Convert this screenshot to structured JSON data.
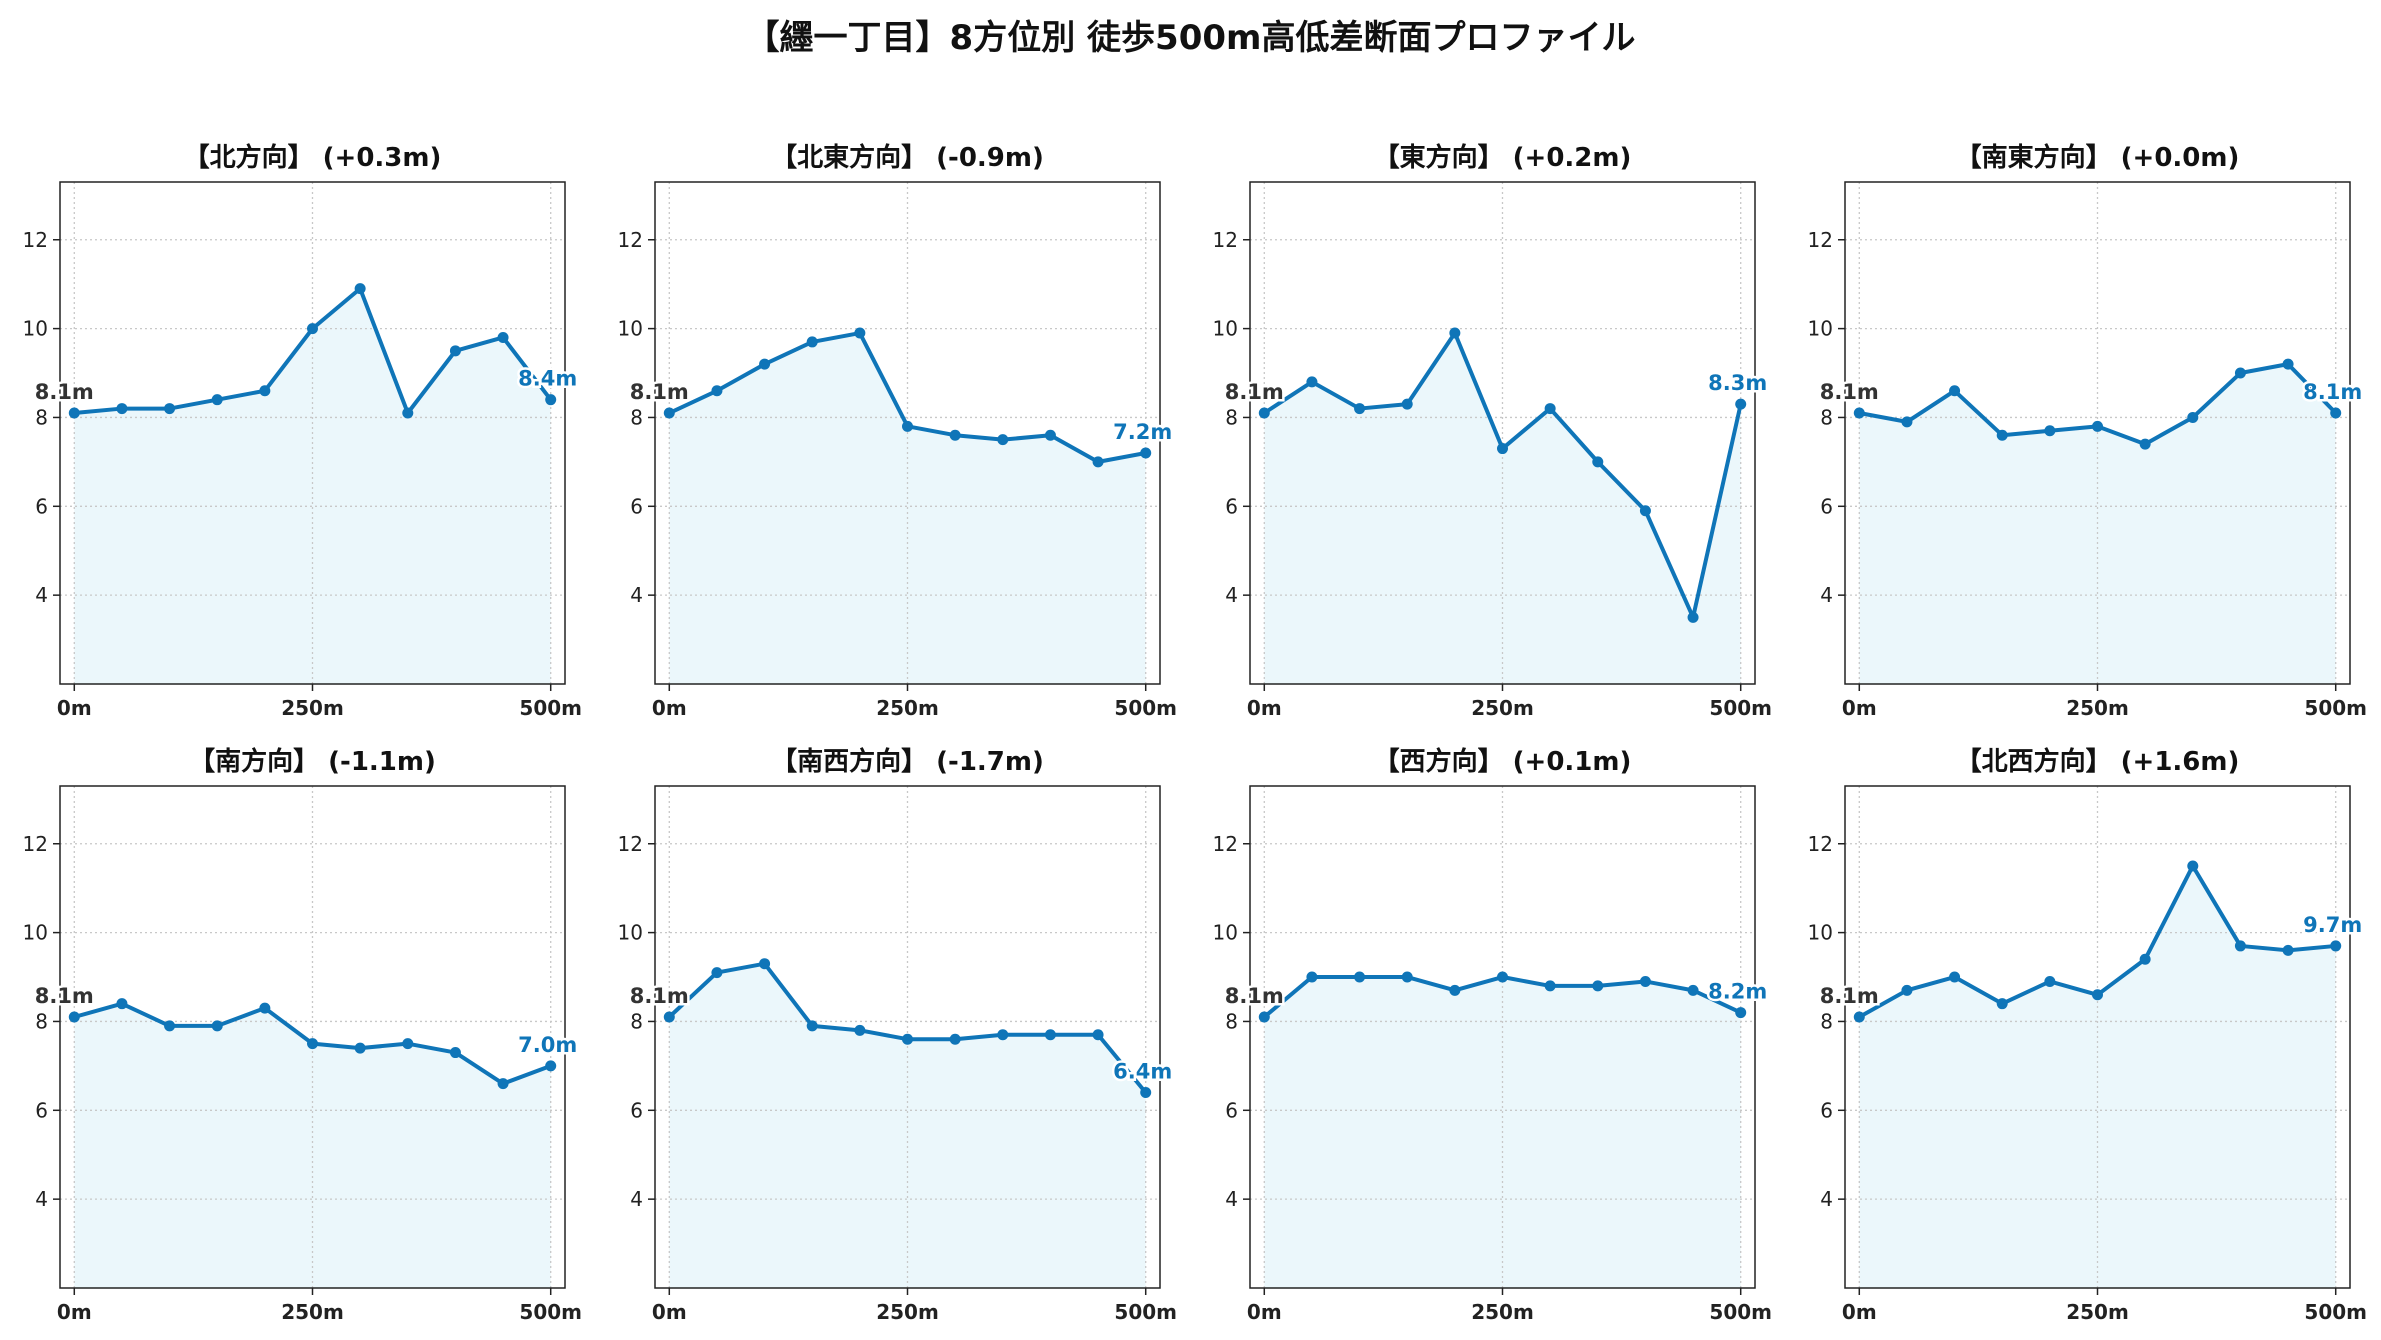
{
  "title": "【纆一丁目】8方位別 徒歩500m高低差断面プロファイル",
  "colors": {
    "line": "#0f75b8",
    "fill": "#ebf7fb",
    "grid": "#c8c8c8",
    "start_label": "#333333",
    "end_label": "#0f75b8"
  },
  "chart_data": [
    {
      "type": "area",
      "title": "【北方向】 (+0.3m)",
      "x": [
        0,
        50,
        100,
        150,
        200,
        250,
        300,
        350,
        400,
        450,
        500
      ],
      "y": [
        8.1,
        8.2,
        8.2,
        8.4,
        8.6,
        10.0,
        10.9,
        8.1,
        9.5,
        9.8,
        8.4
      ],
      "xticks": [
        "0m",
        "250m",
        "500m"
      ],
      "yticks": [
        4,
        6,
        8,
        10,
        12
      ],
      "xlim": [
        -15,
        515
      ],
      "ylim": [
        2,
        13.3
      ],
      "grid": true,
      "start_label": "8.1m",
      "end_label": "8.4m"
    },
    {
      "type": "area",
      "title": "【北東方向】 (-0.9m)",
      "x": [
        0,
        50,
        100,
        150,
        200,
        250,
        300,
        350,
        400,
        450,
        500
      ],
      "y": [
        8.1,
        8.6,
        9.2,
        9.7,
        9.9,
        7.8,
        7.6,
        7.5,
        7.6,
        7.0,
        7.2
      ],
      "xticks": [
        "0m",
        "250m",
        "500m"
      ],
      "yticks": [
        4,
        6,
        8,
        10,
        12
      ],
      "xlim": [
        -15,
        515
      ],
      "ylim": [
        2,
        13.3
      ],
      "grid": true,
      "start_label": "8.1m",
      "end_label": "7.2m"
    },
    {
      "type": "area",
      "title": "【東方向】 (+0.2m)",
      "x": [
        0,
        50,
        100,
        150,
        200,
        250,
        300,
        350,
        400,
        450,
        500
      ],
      "y": [
        8.1,
        8.8,
        8.2,
        8.3,
        9.9,
        7.3,
        8.2,
        7.0,
        5.9,
        3.5,
        8.3
      ],
      "xticks": [
        "0m",
        "250m",
        "500m"
      ],
      "yticks": [
        4,
        6,
        8,
        10,
        12
      ],
      "xlim": [
        -15,
        515
      ],
      "ylim": [
        2,
        13.3
      ],
      "grid": true,
      "start_label": "8.1m",
      "end_label": "8.3m"
    },
    {
      "type": "area",
      "title": "【南東方向】 (+0.0m)",
      "x": [
        0,
        50,
        100,
        150,
        200,
        250,
        300,
        350,
        400,
        450,
        500
      ],
      "y": [
        8.1,
        7.9,
        8.6,
        7.6,
        7.7,
        7.8,
        7.4,
        8.0,
        9.0,
        9.2,
        8.1
      ],
      "xticks": [
        "0m",
        "250m",
        "500m"
      ],
      "yticks": [
        4,
        6,
        8,
        10,
        12
      ],
      "xlim": [
        -15,
        515
      ],
      "ylim": [
        2,
        13.3
      ],
      "grid": true,
      "start_label": "8.1m",
      "end_label": "8.1m"
    },
    {
      "type": "area",
      "title": "【南方向】 (-1.1m)",
      "x": [
        0,
        50,
        100,
        150,
        200,
        250,
        300,
        350,
        400,
        450,
        500
      ],
      "y": [
        8.1,
        8.4,
        7.9,
        7.9,
        8.3,
        7.5,
        7.4,
        7.5,
        7.3,
        6.6,
        7.0
      ],
      "xticks": [
        "0m",
        "250m",
        "500m"
      ],
      "yticks": [
        4,
        6,
        8,
        10,
        12
      ],
      "xlim": [
        -15,
        515
      ],
      "ylim": [
        2,
        13.3
      ],
      "grid": true,
      "start_label": "8.1m",
      "end_label": "7.0m"
    },
    {
      "type": "area",
      "title": "【南西方向】 (-1.7m)",
      "x": [
        0,
        50,
        100,
        150,
        200,
        250,
        300,
        350,
        400,
        450,
        500
      ],
      "y": [
        8.1,
        9.1,
        9.3,
        7.9,
        7.8,
        7.6,
        7.6,
        7.7,
        7.7,
        7.7,
        6.4
      ],
      "xticks": [
        "0m",
        "250m",
        "500m"
      ],
      "yticks": [
        4,
        6,
        8,
        10,
        12
      ],
      "xlim": [
        -15,
        515
      ],
      "ylim": [
        2,
        13.3
      ],
      "grid": true,
      "start_label": "8.1m",
      "end_label": "6.4m"
    },
    {
      "type": "area",
      "title": "【西方向】 (+0.1m)",
      "x": [
        0,
        50,
        100,
        150,
        200,
        250,
        300,
        350,
        400,
        450,
        500
      ],
      "y": [
        8.1,
        9.0,
        9.0,
        9.0,
        8.7,
        9.0,
        8.8,
        8.8,
        8.9,
        8.7,
        8.2
      ],
      "xticks": [
        "0m",
        "250m",
        "500m"
      ],
      "yticks": [
        4,
        6,
        8,
        10,
        12
      ],
      "xlim": [
        -15,
        515
      ],
      "ylim": [
        2,
        13.3
      ],
      "grid": true,
      "start_label": "8.1m",
      "end_label": "8.2m"
    },
    {
      "type": "area",
      "title": "【北西方向】 (+1.6m)",
      "x": [
        0,
        50,
        100,
        150,
        200,
        250,
        300,
        350,
        400,
        450,
        500
      ],
      "y": [
        8.1,
        8.7,
        9.0,
        8.4,
        8.9,
        8.6,
        9.4,
        11.5,
        9.7,
        9.6,
        9.7
      ],
      "xticks": [
        "0m",
        "250m",
        "500m"
      ],
      "yticks": [
        4,
        6,
        8,
        10,
        12
      ],
      "xlim": [
        -15,
        515
      ],
      "ylim": [
        2,
        13.3
      ],
      "grid": true,
      "start_label": "8.1m",
      "end_label": "9.7m"
    }
  ]
}
